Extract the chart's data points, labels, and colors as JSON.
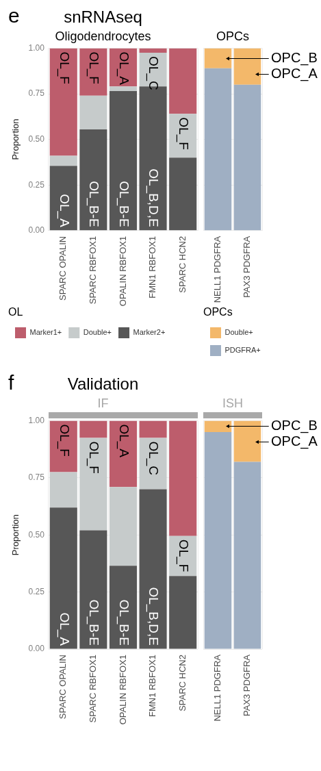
{
  "chart_data": [
    {
      "type": "bar",
      "title": "snRNAseq",
      "subtitle": "Oligodendrocytes",
      "ylabel": "Proportion",
      "legend_title": "OL",
      "categories": [
        "SPARC OPALIN",
        "SPARC RBFOX1",
        "OPALIN RBFOX1",
        "FMN1 RBFOX1",
        "SPARC HCN2"
      ],
      "stacked": true,
      "series": [
        {
          "name": "Marker2+",
          "color": "#575757",
          "values": [
            0.355,
            0.555,
            0.765,
            0.79,
            0.4
          ]
        },
        {
          "name": "Double+",
          "color": "#c6cbcb",
          "values": [
            0.055,
            0.185,
            0.025,
            0.185,
            0.24
          ]
        },
        {
          "name": "Marker1+",
          "color": "#bd5d6c",
          "values": [
            0.59,
            0.26,
            0.21,
            0.025,
            0.36
          ]
        }
      ],
      "ylim": [
        0,
        1
      ],
      "yticks": [
        {
          "value": 0,
          "label": "0.00"
        },
        {
          "value": 0.25,
          "label": "0.25"
        },
        {
          "value": 0.5,
          "label": "0.50"
        },
        {
          "value": 0.75,
          "label": "0.75"
        },
        {
          "value": 1,
          "label": "1.00"
        }
      ],
      "grid": true,
      "legend": "bottom",
      "annotations": [
        "e",
        {
          "text": "OL_F",
          "x": "SPARC OPALIN",
          "y": 1
        },
        {
          "text": "OL_F",
          "x": "SPARC RBFOX1",
          "y": 1
        },
        {
          "text": "OL_A",
          "x": "OPALIN RBFOX1",
          "y": 1
        },
        {
          "text": "OL_C",
          "x": "FMN1 RBFOX1",
          "y": 0.975
        },
        {
          "text": "OL_F",
          "x": "SPARC HCN2",
          "y": 0.64
        },
        {
          "text": "OL_A",
          "x": "SPARC OPALIN",
          "y": 0
        },
        {
          "text": "OL_B-E",
          "x": "SPARC RBFOX1",
          "y": 0
        },
        {
          "text": "OL_B-E",
          "x": "OPALIN RBFOX1",
          "y": 0
        },
        {
          "text": "OL_B,D,E",
          "x": "FMN1 RBFOX1",
          "y": 0
        }
      ]
    },
    {
      "type": "bar",
      "title": "OPCs",
      "legend_title": "OPCs",
      "categories": [
        "NELL1 PDGFRA",
        "PAX3 PDGFRA"
      ],
      "stacked": true,
      "series": [
        {
          "name": "PDGFRA+",
          "color": "#9fafc3",
          "values": [
            0.89,
            0.8
          ]
        },
        {
          "name": "Double+",
          "color": "#f3b86a",
          "values": [
            0.11,
            0.2
          ]
        }
      ],
      "ylim": [
        0,
        1
      ],
      "yticks": [
        0,
        0.25,
        0.5,
        0.75,
        1
      ],
      "grid": true,
      "legend": "bottom",
      "tick_labels": "x",
      "annotations": [
        "OPC_B",
        "OPC_A"
      ]
    },
    {
      "type": "bar",
      "title": "Validation",
      "subtitle": "IF",
      "ylabel": "Proportion",
      "categories": [
        "SPARC OPALIN",
        "SPARC RBFOX1",
        "OPALIN RBFOX1",
        "FMN1 RBFOX1",
        "SPARC HCN2"
      ],
      "stacked": true,
      "series": [
        {
          "color": "#575757",
          "values": [
            0.62,
            0.52,
            0.365,
            0.7,
            0.32
          ]
        },
        {
          "color": "#c6cbcb",
          "values": [
            0.155,
            0.405,
            0.345,
            0.225,
            0.175
          ]
        },
        {
          "color": "#bd5d6c",
          "values": [
            0.225,
            0.075,
            0.29,
            0.075,
            0.505
          ]
        }
      ],
      "ylim": [
        0,
        1
      ],
      "yticks": [
        {
          "value": 0,
          "label": "0.00"
        },
        {
          "value": 0.25,
          "label": "0.25"
        },
        {
          "value": 0.5,
          "label": "0.50"
        },
        {
          "value": 0.75,
          "label": "0.75"
        },
        {
          "value": 1,
          "label": "1.00"
        }
      ],
      "grid": true,
      "annotations": [
        "f",
        {
          "text": "OL_F",
          "x": "SPARC OPALIN",
          "y": 1
        },
        {
          "text": "OL_F",
          "x": "SPARC RBFOX1",
          "y": 0.925
        },
        {
          "text": "OL_A",
          "x": "OPALIN RBFOX1",
          "y": 1
        },
        {
          "text": "OL_C",
          "x": "FMN1 RBFOX1",
          "y": 0.925
        },
        {
          "text": "OL_F",
          "x": "SPARC HCN2",
          "y": 0.495
        },
        {
          "text": "OL_A",
          "x": "SPARC OPALIN",
          "y": 0
        },
        {
          "text": "OL_B-E",
          "x": "SPARC RBFOX1",
          "y": 0
        },
        {
          "text": "OL_B-E",
          "x": "OPALIN RBFOX1",
          "y": 0
        },
        {
          "text": "OL_B,D,E",
          "x": "FMN1 RBFOX1",
          "y": 0
        }
      ]
    },
    {
      "type": "bar",
      "title": "ISH",
      "categories": [
        "NELL1 PDGFRA",
        "PAX3 PDGFRA"
      ],
      "stacked": true,
      "series": [
        {
          "color": "#9fafc3",
          "values": [
            0.95,
            0.82
          ]
        },
        {
          "color": "#f3b86a",
          "values": [
            0.05,
            0.18
          ]
        }
      ],
      "ylim": [
        0,
        1
      ],
      "yticks": [
        0,
        0.25,
        0.5,
        0.75,
        1
      ],
      "grid": true,
      "tick_labels": "x",
      "annotations": [
        "OPC_B",
        "OPC_A"
      ]
    }
  ]
}
